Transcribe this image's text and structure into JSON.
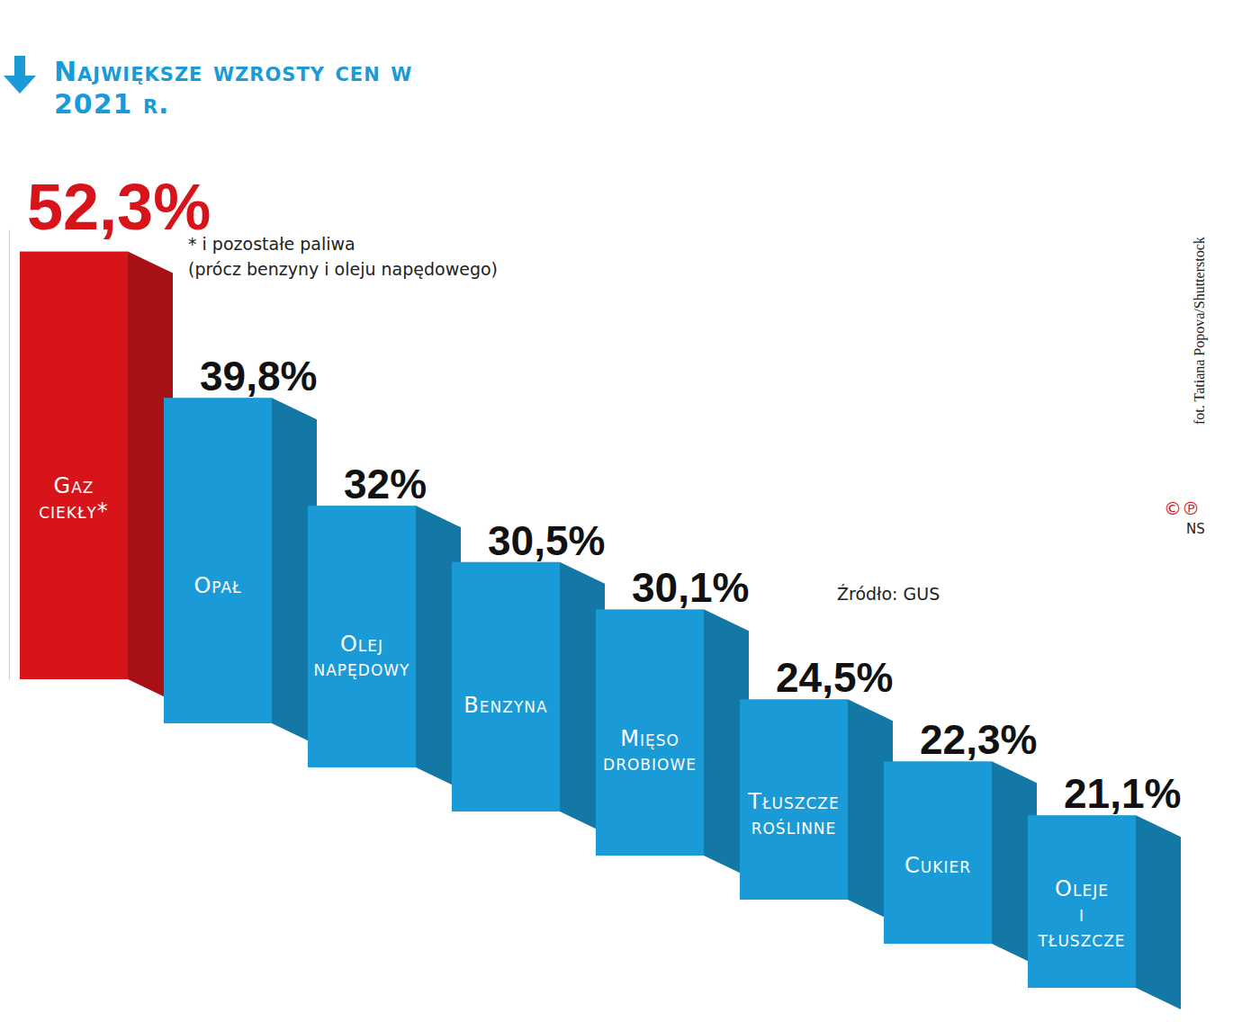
{
  "chart_data": {
    "type": "bar",
    "title": "Największe wzrosty cen w 2021 r.",
    "categories": [
      "Gaz ciekły*",
      "Opał",
      "Olej napędowy",
      "Benzyna",
      "Mięso drobiowe",
      "Tłuszcze roślinne",
      "Cukier",
      "Oleje i tłuszcze"
    ],
    "values": [
      52.3,
      39.8,
      32,
      30.5,
      30.1,
      24.5,
      22.3,
      21.1
    ],
    "value_labels": [
      "52,3%",
      "39,8%",
      "32%",
      "30,5%",
      "30,1%",
      "24,5%",
      "22,3%",
      "21,1%"
    ],
    "colors": [
      "#d7141a",
      "#1a9ad6",
      "#1a9ad6",
      "#1a9ad6",
      "#1a9ad6",
      "#1a9ad6",
      "#1a9ad6",
      "#1a9ad6"
    ],
    "data_labels": true,
    "tick_labels": false,
    "ylim": [
      0,
      55
    ],
    "footnote": [
      "* i pozostałe paliwa",
      "(prócz benzyny i oleju napędowego)"
    ],
    "source": "Źródło: GUS",
    "credit": "fot. Tatiana Popova/Shutterstock",
    "copyright": "©℗",
    "agency": "NS"
  }
}
